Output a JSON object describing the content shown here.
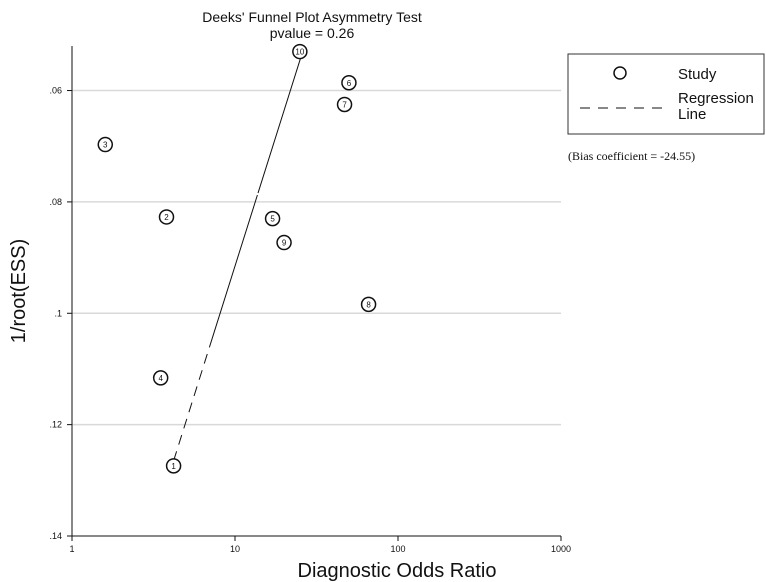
{
  "chart_data": {
    "type": "scatter",
    "title": "Deeks' Funnel Plot Asymmetry Test",
    "subtitle": "pvalue  =   0.26",
    "xlabel": "Diagnostic Odds Ratio",
    "ylabel": "1/root(ESS)",
    "x_scale": "log",
    "xlim": [
      1,
      1000
    ],
    "ylim": [
      0.14,
      0.052
    ],
    "y_reversed": true,
    "x_ticks": [
      1,
      10,
      100,
      1000
    ],
    "x_tick_labels": [
      "1",
      "10",
      "100",
      "1000"
    ],
    "y_ticks": [
      0.06,
      0.08,
      0.1,
      0.12,
      0.14
    ],
    "y_tick_labels": [
      ".06",
      ".08",
      ".1",
      ".12",
      ".14"
    ],
    "grid": "horizontal",
    "legend_position": "right",
    "series": [
      {
        "name": "Study",
        "points": [
          {
            "label": "1",
            "x": 4.2,
            "y": 0.1274
          },
          {
            "label": "2",
            "x": 3.8,
            "y": 0.0827
          },
          {
            "label": "3",
            "x": 1.6,
            "y": 0.0697
          },
          {
            "label": "4",
            "x": 3.5,
            "y": 0.1116
          },
          {
            "label": "5",
            "x": 17,
            "y": 0.083
          },
          {
            "label": "6",
            "x": 50,
            "y": 0.0586
          },
          {
            "label": "7",
            "x": 47,
            "y": 0.0625
          },
          {
            "label": "8",
            "x": 66,
            "y": 0.0984
          },
          {
            "label": "9",
            "x": 20,
            "y": 0.0873
          },
          {
            "label": "10",
            "x": 25,
            "y": 0.053
          }
        ]
      },
      {
        "name": "Regression Line",
        "line": [
          {
            "x": 4.2,
            "y": 0.1265
          },
          {
            "x": 26,
            "y": 0.053
          }
        ]
      }
    ],
    "legend": {
      "study_label": "Study",
      "regression_label_1": "Regression",
      "regression_label_2": "Line"
    },
    "annotation": "(Bias coefficient = -24.55)"
  }
}
